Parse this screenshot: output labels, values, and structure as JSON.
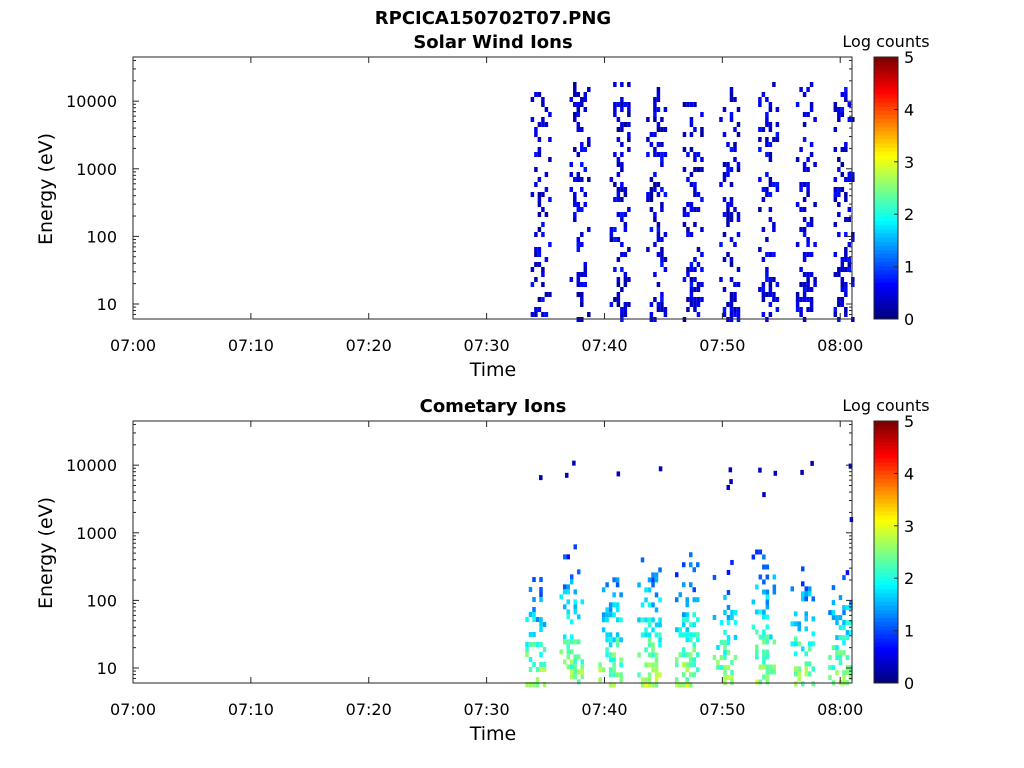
{
  "figure": {
    "title": "RPCICA150702T07.PNG"
  },
  "chart_data": [
    {
      "type": "heatmap",
      "title": "Solar Wind Ions",
      "xlabel": "Time",
      "ylabel": "Energy (eV)",
      "x_ticks": [
        "07:00",
        "07:10",
        "07:20",
        "07:30",
        "07:40",
        "07:50",
        "08:00"
      ],
      "xlim": [
        "07:00",
        "08:01"
      ],
      "y_scale": "log",
      "y_ticks": [
        "10",
        "100",
        "1000",
        "10000"
      ],
      "ylim": [
        6,
        45000
      ],
      "colorbar": {
        "label": "Log counts",
        "ticks": [
          "0",
          "1",
          "2",
          "3",
          "4",
          "5"
        ],
        "range": [
          0,
          5
        ],
        "colormap": "jet"
      },
      "data_note_values": "log counts ~0-0.6 (dark blue) in bursts",
      "bursts_minutes": [
        34.5,
        37.8,
        41.2,
        44.3,
        47.4,
        50.5,
        53.8,
        57.0,
        60.2
      ],
      "typical_log_counts": 0.3
    },
    {
      "type": "heatmap",
      "title": "Cometary Ions",
      "xlabel": "Time",
      "ylabel": "Energy (eV)",
      "x_ticks": [
        "07:00",
        "07:10",
        "07:20",
        "07:30",
        "07:40",
        "07:50",
        "08:00"
      ],
      "xlim": [
        "07:00",
        "08:01"
      ],
      "y_scale": "log",
      "y_ticks": [
        "10",
        "100",
        "1000",
        "10000"
      ],
      "ylim": [
        6,
        45000
      ],
      "colorbar": {
        "label": "Log counts",
        "ticks": [
          "0",
          "1",
          "2",
          "3",
          "4",
          "5"
        ],
        "range": [
          0,
          5
        ],
        "colormap": "jet"
      },
      "bursts_minutes": [
        34.0,
        37.2,
        40.5,
        43.8,
        47.0,
        50.2,
        53.5,
        56.8,
        60.0
      ],
      "peak_log_counts": 2.3
    }
  ]
}
